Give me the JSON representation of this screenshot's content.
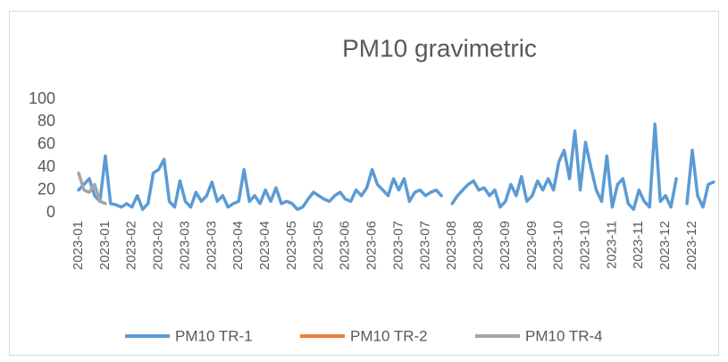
{
  "chart_data": {
    "type": "line",
    "title": "PM10 gravimetric",
    "categories": [
      "2023-01",
      null,
      null,
      null,
      null,
      "2023-01",
      null,
      null,
      null,
      null,
      "2023-02",
      null,
      null,
      null,
      null,
      "2023-02",
      null,
      null,
      null,
      null,
      "2023-03",
      null,
      null,
      null,
      null,
      "2023-03",
      null,
      null,
      null,
      null,
      "2023-04",
      null,
      null,
      null,
      null,
      "2023-04",
      null,
      null,
      null,
      null,
      "2023-05",
      null,
      null,
      null,
      null,
      "2023-05",
      null,
      null,
      null,
      null,
      "2023-06",
      null,
      null,
      null,
      null,
      "2023-06",
      null,
      null,
      null,
      null,
      "2023-07",
      null,
      null,
      null,
      null,
      "2023-07",
      null,
      null,
      null,
      null,
      "2023-08",
      null,
      null,
      null,
      null,
      "2023-08",
      null,
      null,
      null,
      null,
      "2023-09",
      null,
      null,
      null,
      null,
      "2023-09",
      null,
      null,
      null,
      null,
      "2023-10",
      null,
      null,
      null,
      null,
      "2023-10",
      null,
      null,
      null,
      null,
      "2023-11",
      null,
      null,
      null,
      null,
      "2023-11",
      null,
      null,
      null,
      null,
      "2023-12",
      null,
      null,
      null,
      null,
      "2023-12",
      null,
      null,
      null,
      null
    ],
    "series": [
      {
        "name": "PM10 TR-1",
        "color": "#5b9bd5",
        "values": [
          20,
          25,
          30,
          15,
          10,
          50,
          8,
          7,
          5,
          8,
          5,
          15,
          3,
          8,
          35,
          38,
          47,
          10,
          5,
          28,
          10,
          5,
          18,
          10,
          15,
          27,
          10,
          15,
          5,
          8,
          10,
          38,
          10,
          15,
          8,
          20,
          10,
          22,
          8,
          10,
          8,
          3,
          5,
          12,
          18,
          15,
          12,
          10,
          15,
          18,
          12,
          10,
          20,
          15,
          22,
          38,
          25,
          20,
          15,
          30,
          20,
          30,
          10,
          18,
          20,
          15,
          18,
          20,
          15,
          null,
          8,
          15,
          20,
          25,
          28,
          20,
          22,
          15,
          20,
          5,
          10,
          25,
          15,
          32,
          10,
          15,
          28,
          20,
          30,
          20,
          45,
          55,
          30,
          72,
          20,
          62,
          40,
          20,
          10,
          50,
          5,
          25,
          30,
          8,
          3,
          20,
          10,
          5,
          78,
          10,
          15,
          5,
          30,
          null,
          8,
          55,
          15,
          5,
          25,
          27
        ]
      },
      {
        "name": "PM10 TR-2",
        "color": "#ed7d31",
        "values": [
          null,
          null,
          null,
          null,
          null,
          null,
          null,
          null,
          null,
          null,
          null,
          null,
          null,
          null,
          null,
          null,
          null,
          null,
          null,
          null,
          null,
          null,
          null,
          null,
          null,
          null,
          null,
          null,
          null,
          null,
          null,
          null,
          null,
          null,
          null,
          null,
          null,
          null,
          null,
          null,
          null,
          null,
          null,
          null,
          null,
          null,
          null,
          null,
          null,
          null,
          null,
          null,
          null,
          null,
          null,
          null,
          null,
          null,
          null,
          null,
          null,
          null,
          null,
          null,
          null,
          null,
          null,
          null,
          null,
          null,
          null,
          null,
          null,
          null,
          null,
          null,
          null,
          null,
          null,
          null,
          null,
          null,
          null,
          null,
          null,
          null,
          null,
          null,
          null,
          null,
          null,
          null,
          null,
          null,
          null,
          null,
          null,
          null,
          null,
          null,
          null,
          null,
          null,
          null,
          null,
          null,
          null,
          null,
          null,
          null,
          null,
          null,
          null,
          null,
          null,
          null,
          null,
          null,
          null,
          null
        ]
      },
      {
        "name": "PM10 TR-4",
        "color": "#a5a5a5",
        "values": [
          35,
          20,
          18,
          25,
          10,
          8,
          null,
          null,
          null,
          null,
          null,
          null,
          null,
          null,
          null,
          null,
          null,
          null,
          null,
          null,
          null,
          null,
          null,
          null,
          null,
          null,
          null,
          null,
          null,
          null,
          null,
          null,
          null,
          null,
          null,
          null,
          null,
          null,
          null,
          null,
          null,
          null,
          null,
          null,
          null,
          null,
          null,
          null,
          null,
          null,
          null,
          null,
          null,
          null,
          null,
          null,
          null,
          null,
          null,
          null,
          null,
          null,
          null,
          null,
          null,
          null,
          null,
          null,
          null,
          null,
          null,
          null,
          null,
          null,
          null,
          null,
          null,
          null,
          null,
          null,
          null,
          null,
          null,
          null,
          null,
          null,
          null,
          null,
          null,
          null,
          null,
          null,
          null,
          null,
          null,
          null,
          null,
          null,
          null,
          null,
          null,
          null,
          null,
          null,
          null,
          null,
          null,
          null,
          null,
          null,
          null,
          null,
          null,
          null,
          null,
          null,
          null,
          null,
          null,
          null
        ]
      }
    ],
    "ylim": [
      0,
      100
    ],
    "yticks": [
      0,
      20,
      40,
      60,
      80,
      100
    ],
    "grid": false
  }
}
